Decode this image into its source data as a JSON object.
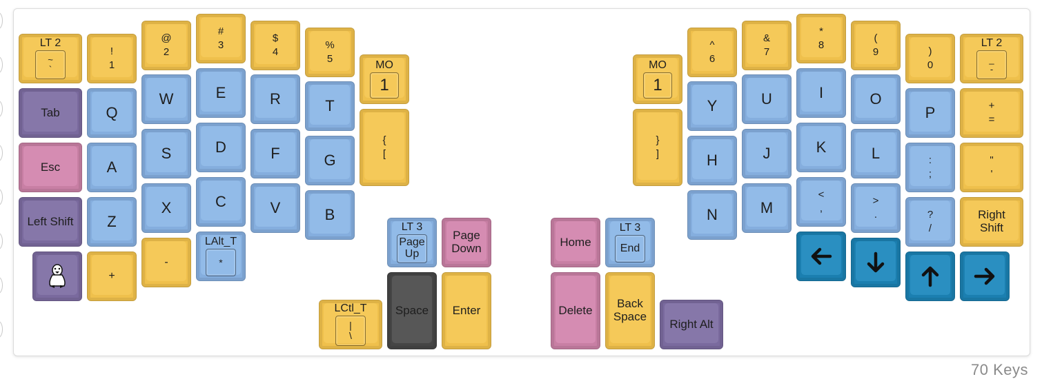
{
  "key_count": "70 Keys",
  "keys": {
    "grave": {
      "hold": "LT 2",
      "shift": "~",
      "base": "`"
    },
    "n1": {
      "shift": "!",
      "base": "1"
    },
    "n2": {
      "shift": "@",
      "base": "2"
    },
    "n3": {
      "shift": "#",
      "base": "3"
    },
    "n4": {
      "shift": "$",
      "base": "4"
    },
    "n5": {
      "shift": "%",
      "base": "5"
    },
    "mo_left": {
      "hold": "MO",
      "base": "1"
    },
    "tab": "Tab",
    "q": "Q",
    "w": "W",
    "e": "E",
    "r": "R",
    "t": "T",
    "lbrace": {
      "shift": "{",
      "base": "["
    },
    "esc": "Esc",
    "a": "A",
    "s": "S",
    "d": "D",
    "f": "F",
    "g": "G",
    "lshift": "Left Shift",
    "z": "Z",
    "x": "X",
    "c": "C",
    "v": "V",
    "b": "B",
    "plus": "+",
    "minus": "-",
    "lalt": {
      "hold": "LAlt_T",
      "base": "*"
    },
    "pgup": {
      "hold": "LT 3",
      "line1": "Page",
      "line2": "Up"
    },
    "pgdn": {
      "line1": "Page",
      "line2": "Down"
    },
    "lctl": {
      "hold": "LCtl_T",
      "shift": "|",
      "base": "\\"
    },
    "space": "Space",
    "enter": "Enter",
    "n6": {
      "shift": "^",
      "base": "6"
    },
    "n7": {
      "shift": "&",
      "base": "7"
    },
    "n8": {
      "shift": "*",
      "base": "8"
    },
    "n9": {
      "shift": "(",
      "base": "9"
    },
    "n0": {
      "shift": ")",
      "base": "0"
    },
    "dash": {
      "hold": "LT 2",
      "shift": "_",
      "base": "-"
    },
    "mo_right": {
      "hold": "MO",
      "base": "1"
    },
    "rbrace": {
      "shift": "}",
      "base": "]"
    },
    "y": "Y",
    "u": "U",
    "i": "I",
    "o": "O",
    "p": "P",
    "eq": {
      "shift": "+",
      "base": "="
    },
    "h": "H",
    "j": "J",
    "k": "K",
    "l": "L",
    "semi": {
      "shift": ":",
      "base": ";"
    },
    "quote": {
      "shift": "\"",
      "base": "'"
    },
    "n": "N",
    "m": "M",
    "comma": {
      "shift": "<",
      "base": ","
    },
    "dot": {
      "shift": ">",
      "base": "."
    },
    "slash": {
      "shift": "?",
      "base": "/"
    },
    "rshift": {
      "line1": "Right",
      "line2": "Shift"
    },
    "home": "Home",
    "end": {
      "hold": "LT 3",
      "base": "End"
    },
    "delete": "Delete",
    "bksp": {
      "line1": "Back",
      "line2": "Space"
    },
    "ralt": "Right Alt",
    "linux_icon": "linux-tux-icon",
    "arrows": [
      "left-arrow-icon",
      "down-arrow-icon",
      "up-arrow-icon",
      "right-arrow-icon"
    ]
  },
  "colors": {
    "yellow": "#f5c959",
    "blue": "#92bbe8",
    "purple": "#8677a9",
    "pink": "#d58cb2",
    "dark": "#575757",
    "arrow_blue": "#2a8fc1"
  }
}
